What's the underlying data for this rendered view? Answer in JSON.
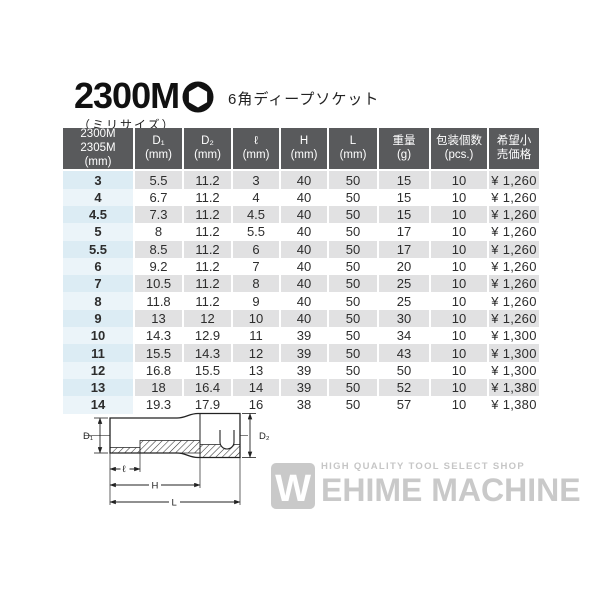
{
  "header": {
    "model": "2300M",
    "size_note": "（ミリサイズ）",
    "icon": "hex-socket-icon",
    "product_type": "6角ディープソケット"
  },
  "table": {
    "columns": [
      "2300M\n2305M\n(mm)",
      "D₁\n(mm)",
      "D₂\n(mm)",
      "ℓ\n(mm)",
      "H\n(mm)",
      "L\n(mm)",
      "重量\n(g)",
      "包装個数\n(pcs.)",
      "希望小\n売価格"
    ],
    "rows": [
      [
        "3",
        "5.5",
        "11.2",
        "3",
        "40",
        "50",
        "15",
        "10",
        "¥ 1,260"
      ],
      [
        "4",
        "6.7",
        "11.2",
        "4",
        "40",
        "50",
        "15",
        "10",
        "¥ 1,260"
      ],
      [
        "4.5",
        "7.3",
        "11.2",
        "4.5",
        "40",
        "50",
        "15",
        "10",
        "¥ 1,260"
      ],
      [
        "5",
        "8",
        "11.2",
        "5.5",
        "40",
        "50",
        "17",
        "10",
        "¥ 1,260"
      ],
      [
        "5.5",
        "8.5",
        "11.2",
        "6",
        "40",
        "50",
        "17",
        "10",
        "¥ 1,260"
      ],
      [
        "6",
        "9.2",
        "11.2",
        "7",
        "40",
        "50",
        "20",
        "10",
        "¥ 1,260"
      ],
      [
        "7",
        "10.5",
        "11.2",
        "8",
        "40",
        "50",
        "25",
        "10",
        "¥ 1,260"
      ],
      [
        "8",
        "11.8",
        "11.2",
        "9",
        "40",
        "50",
        "25",
        "10",
        "¥ 1,260"
      ],
      [
        "9",
        "13",
        "12",
        "10",
        "40",
        "50",
        "30",
        "10",
        "¥ 1,260"
      ],
      [
        "10",
        "14.3",
        "12.9",
        "11",
        "39",
        "50",
        "34",
        "10",
        "¥ 1,300"
      ],
      [
        "11",
        "15.5",
        "14.3",
        "12",
        "39",
        "50",
        "43",
        "10",
        "¥ 1,300"
      ],
      [
        "12",
        "16.8",
        "15.5",
        "13",
        "39",
        "50",
        "50",
        "10",
        "¥ 1,300"
      ],
      [
        "13",
        "18",
        "16.4",
        "14",
        "39",
        "50",
        "52",
        "10",
        "¥ 1,380"
      ],
      [
        "14",
        "19.3",
        "17.9",
        "16",
        "38",
        "50",
        "57",
        "10",
        "¥ 1,380"
      ]
    ]
  },
  "diagram": {
    "labels": {
      "d1": "D₁",
      "d2": "D₂",
      "ell": "ℓ",
      "h": "H",
      "l": "L"
    }
  },
  "watermark": {
    "logo_letter": "W",
    "tagline": "HIGH QUALITY TOOL SELECT SHOP",
    "name": "EHIME MACHINE"
  },
  "colors": {
    "header_bg": "#595a5c",
    "stripe_gray": "#e1e1e2",
    "first_col_blue_dark": "#dcecf4",
    "first_col_blue_light": "#ebf4f9",
    "watermark_gray": "#c9c9c9",
    "ink": "#222222"
  }
}
